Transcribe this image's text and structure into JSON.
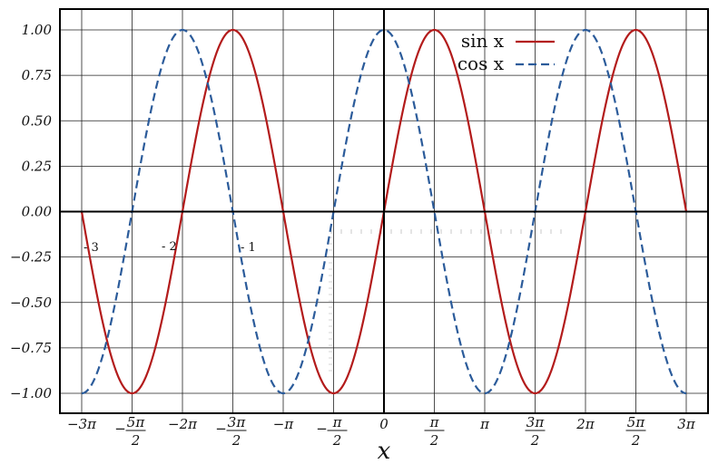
{
  "chart_data": {
    "type": "line",
    "xlabel": "x",
    "xlim": [
      "-3π",
      "3π"
    ],
    "ylim": [
      -1.0,
      1.0
    ],
    "grid": true,
    "legend_position": "top-right",
    "x_ticks": [
      {
        "label": "−3π"
      },
      {
        "num": "5π",
        "den": "2",
        "sign": "−"
      },
      {
        "label": "−2π"
      },
      {
        "num": "3π",
        "den": "2",
        "sign": "−"
      },
      {
        "label": "−π"
      },
      {
        "num": "π",
        "den": "2",
        "sign": "−"
      },
      {
        "label": "0"
      },
      {
        "num": "π",
        "den": "2",
        "sign": ""
      },
      {
        "label": "π"
      },
      {
        "num": "3π",
        "den": "2",
        "sign": ""
      },
      {
        "label": "2π"
      },
      {
        "num": "5π",
        "den": "2",
        "sign": ""
      },
      {
        "label": "3π"
      }
    ],
    "y_ticks": [
      "1.00",
      "0.75",
      "0.50",
      "0.25",
      "0.00",
      "−0.25",
      "−0.50",
      "−0.75",
      "−1.00"
    ],
    "series": [
      {
        "name": "sin x",
        "function": "sin",
        "color": "#b31b1b",
        "style": "solid"
      },
      {
        "name": "cos x",
        "function": "cos",
        "color": "#2b5b9a",
        "style": "dashed"
      }
    ],
    "stray_labels": [
      "- 3",
      "- 2",
      "- 1"
    ]
  }
}
